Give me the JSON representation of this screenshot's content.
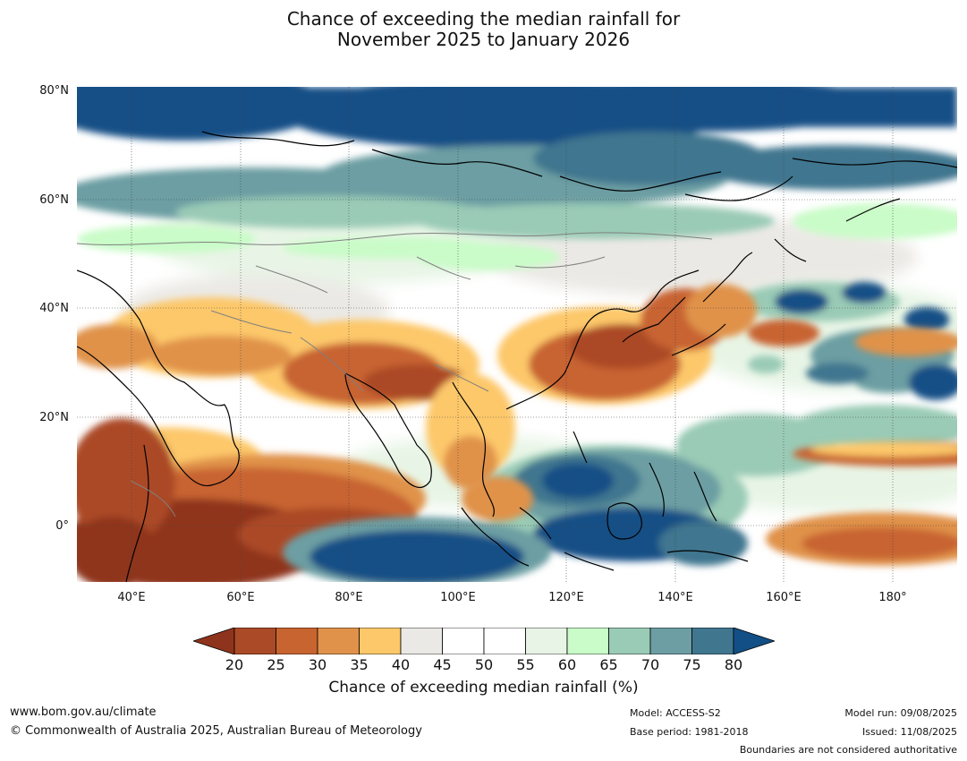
{
  "title_line1": "Chance of exceeding the median rainfall for",
  "title_line2": "November 2025 to January 2026",
  "lat_labels": [
    "80°N",
    "60°N",
    "40°N",
    "20°N",
    "0°"
  ],
  "lon_labels": [
    "40°E",
    "60°E",
    "80°E",
    "100°E",
    "120°E",
    "140°E",
    "160°E",
    "180°"
  ],
  "colorbar": {
    "ticks": [
      "20",
      "25",
      "30",
      "35",
      "40",
      "45",
      "50",
      "55",
      "60",
      "65",
      "70",
      "75",
      "80"
    ],
    "colors": [
      "#8f341c",
      "#ab4a26",
      "#c86430",
      "#e0924a",
      "#fdc86a",
      "#ebe9e5",
      "#ffffff",
      "#ffffff",
      "#e8f5e6",
      "#c9fcc8",
      "#9acbb6",
      "#6c9ea3",
      "#41768f",
      "#124f86"
    ],
    "title": "Chance of exceeding median rainfall (%)"
  },
  "footer": {
    "website": "www.bom.gov.au/climate",
    "copyright": "© Commonwealth of Australia 2025, Australian Bureau of Meteorology",
    "model": "Model: ACCESS-S2",
    "base_period": "Base period: 1981-2018",
    "model_run": "Model run: 09/08/2025",
    "issued": "Issued: 11/08/2025",
    "boundaries": "Boundaries are not considered authoritative"
  }
}
